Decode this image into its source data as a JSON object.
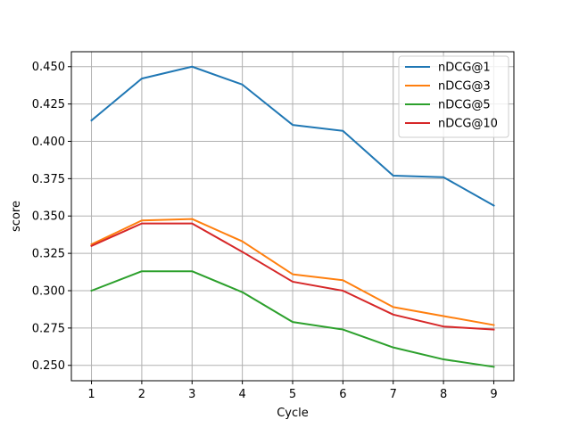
{
  "chart_data": {
    "type": "line",
    "title": "",
    "xlabel": "Cycle",
    "ylabel": "score",
    "x": [
      1,
      2,
      3,
      4,
      5,
      6,
      7,
      8,
      9
    ],
    "xlim": [
      0.6,
      9.4
    ],
    "ylim": [
      0.2397,
      0.46
    ],
    "xticks": [
      1,
      2,
      3,
      4,
      5,
      6,
      7,
      8,
      9
    ],
    "yticks": [
      0.25,
      0.275,
      0.3,
      0.325,
      0.35,
      0.375,
      0.4,
      0.425,
      0.45
    ],
    "ytick_labels": [
      "0.250",
      "0.275",
      "0.300",
      "0.325",
      "0.350",
      "0.375",
      "0.400",
      "0.425",
      "0.450"
    ],
    "grid": true,
    "legend_position": "top-right",
    "series": [
      {
        "name": "nDCG@1",
        "color": "#1f77b4",
        "values": [
          0.414,
          0.442,
          0.45,
          0.438,
          0.411,
          0.407,
          0.377,
          0.376,
          0.357
        ]
      },
      {
        "name": "nDCG@3",
        "color": "#ff7f0e",
        "values": [
          0.331,
          0.347,
          0.348,
          0.333,
          0.311,
          0.307,
          0.289,
          0.283,
          0.277
        ]
      },
      {
        "name": "nDCG@5",
        "color": "#2ca02c",
        "values": [
          0.3,
          0.313,
          0.313,
          0.299,
          0.279,
          0.274,
          0.262,
          0.254,
          0.249
        ]
      },
      {
        "name": "nDCG@10",
        "color": "#d62728",
        "values": [
          0.33,
          0.345,
          0.345,
          0.326,
          0.306,
          0.3,
          0.284,
          0.276,
          0.274
        ]
      }
    ]
  }
}
